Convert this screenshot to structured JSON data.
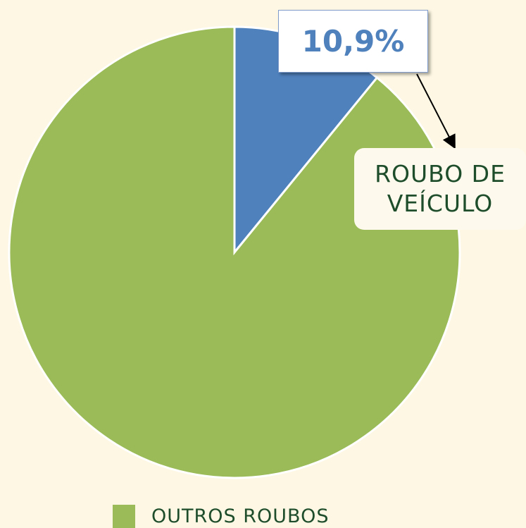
{
  "chart_data": {
    "type": "pie",
    "categories": [
      "ROUBO DE VEÍCULO",
      "OUTROS ROUBOS"
    ],
    "values": [
      10.9,
      89.1
    ],
    "value_labels": [
      "10,9%",
      null
    ],
    "colors": [
      "#4f81bd",
      "#9bbb59"
    ]
  }
}
